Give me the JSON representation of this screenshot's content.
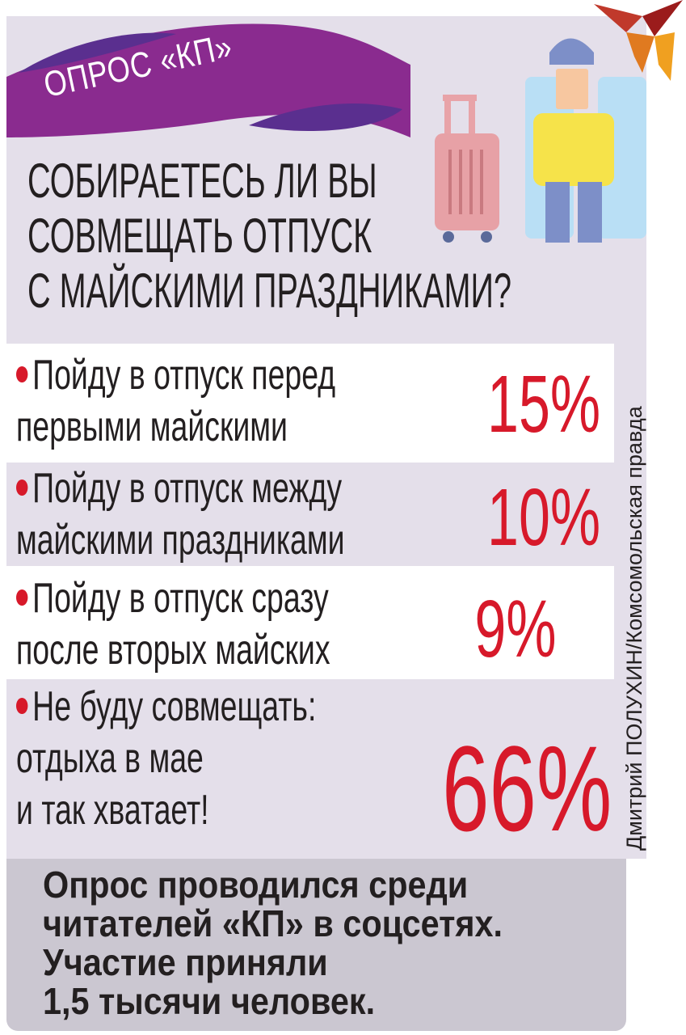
{
  "header": {
    "badge": "ОПРОС «КП»",
    "brand_color": "#8a2b8f"
  },
  "question": [
    "СОБИРАЕТЕСЬ ЛИ ВЫ",
    "СОВМЕЩАТЬ ОТПУСК",
    "С МАЙСКИМИ ПРАЗДНИКАМИ?"
  ],
  "answers": [
    {
      "lines": [
        "Пойду в отпуск перед",
        "первыми майскими"
      ],
      "percent": "15%"
    },
    {
      "lines": [
        "Пойду в отпуск между",
        "майскими праздниками"
      ],
      "percent": "10%"
    },
    {
      "lines": [
        "Пойду в отпуск сразу",
        "после вторых майских"
      ],
      "percent": "9%"
    },
    {
      "lines": [
        "Не буду совмещать:",
        "отдыха в мае",
        "и так хватает!"
      ],
      "percent": "66%"
    }
  ],
  "credit": "Дмитрий ПОЛУХИН/Комсомольская правда",
  "footer": [
    "Опрос проводился среди",
    "читателей «КП» в соцсетях.",
    "Участие приняли",
    "1,5 тысячи человек."
  ],
  "colors": {
    "accent": "#d7192a",
    "panel": "#e4dfea",
    "footer": "#cbc7d1"
  },
  "icons": [
    "kp-bird-logo",
    "suitcase-icon",
    "seated-traveler-illustration"
  ]
}
